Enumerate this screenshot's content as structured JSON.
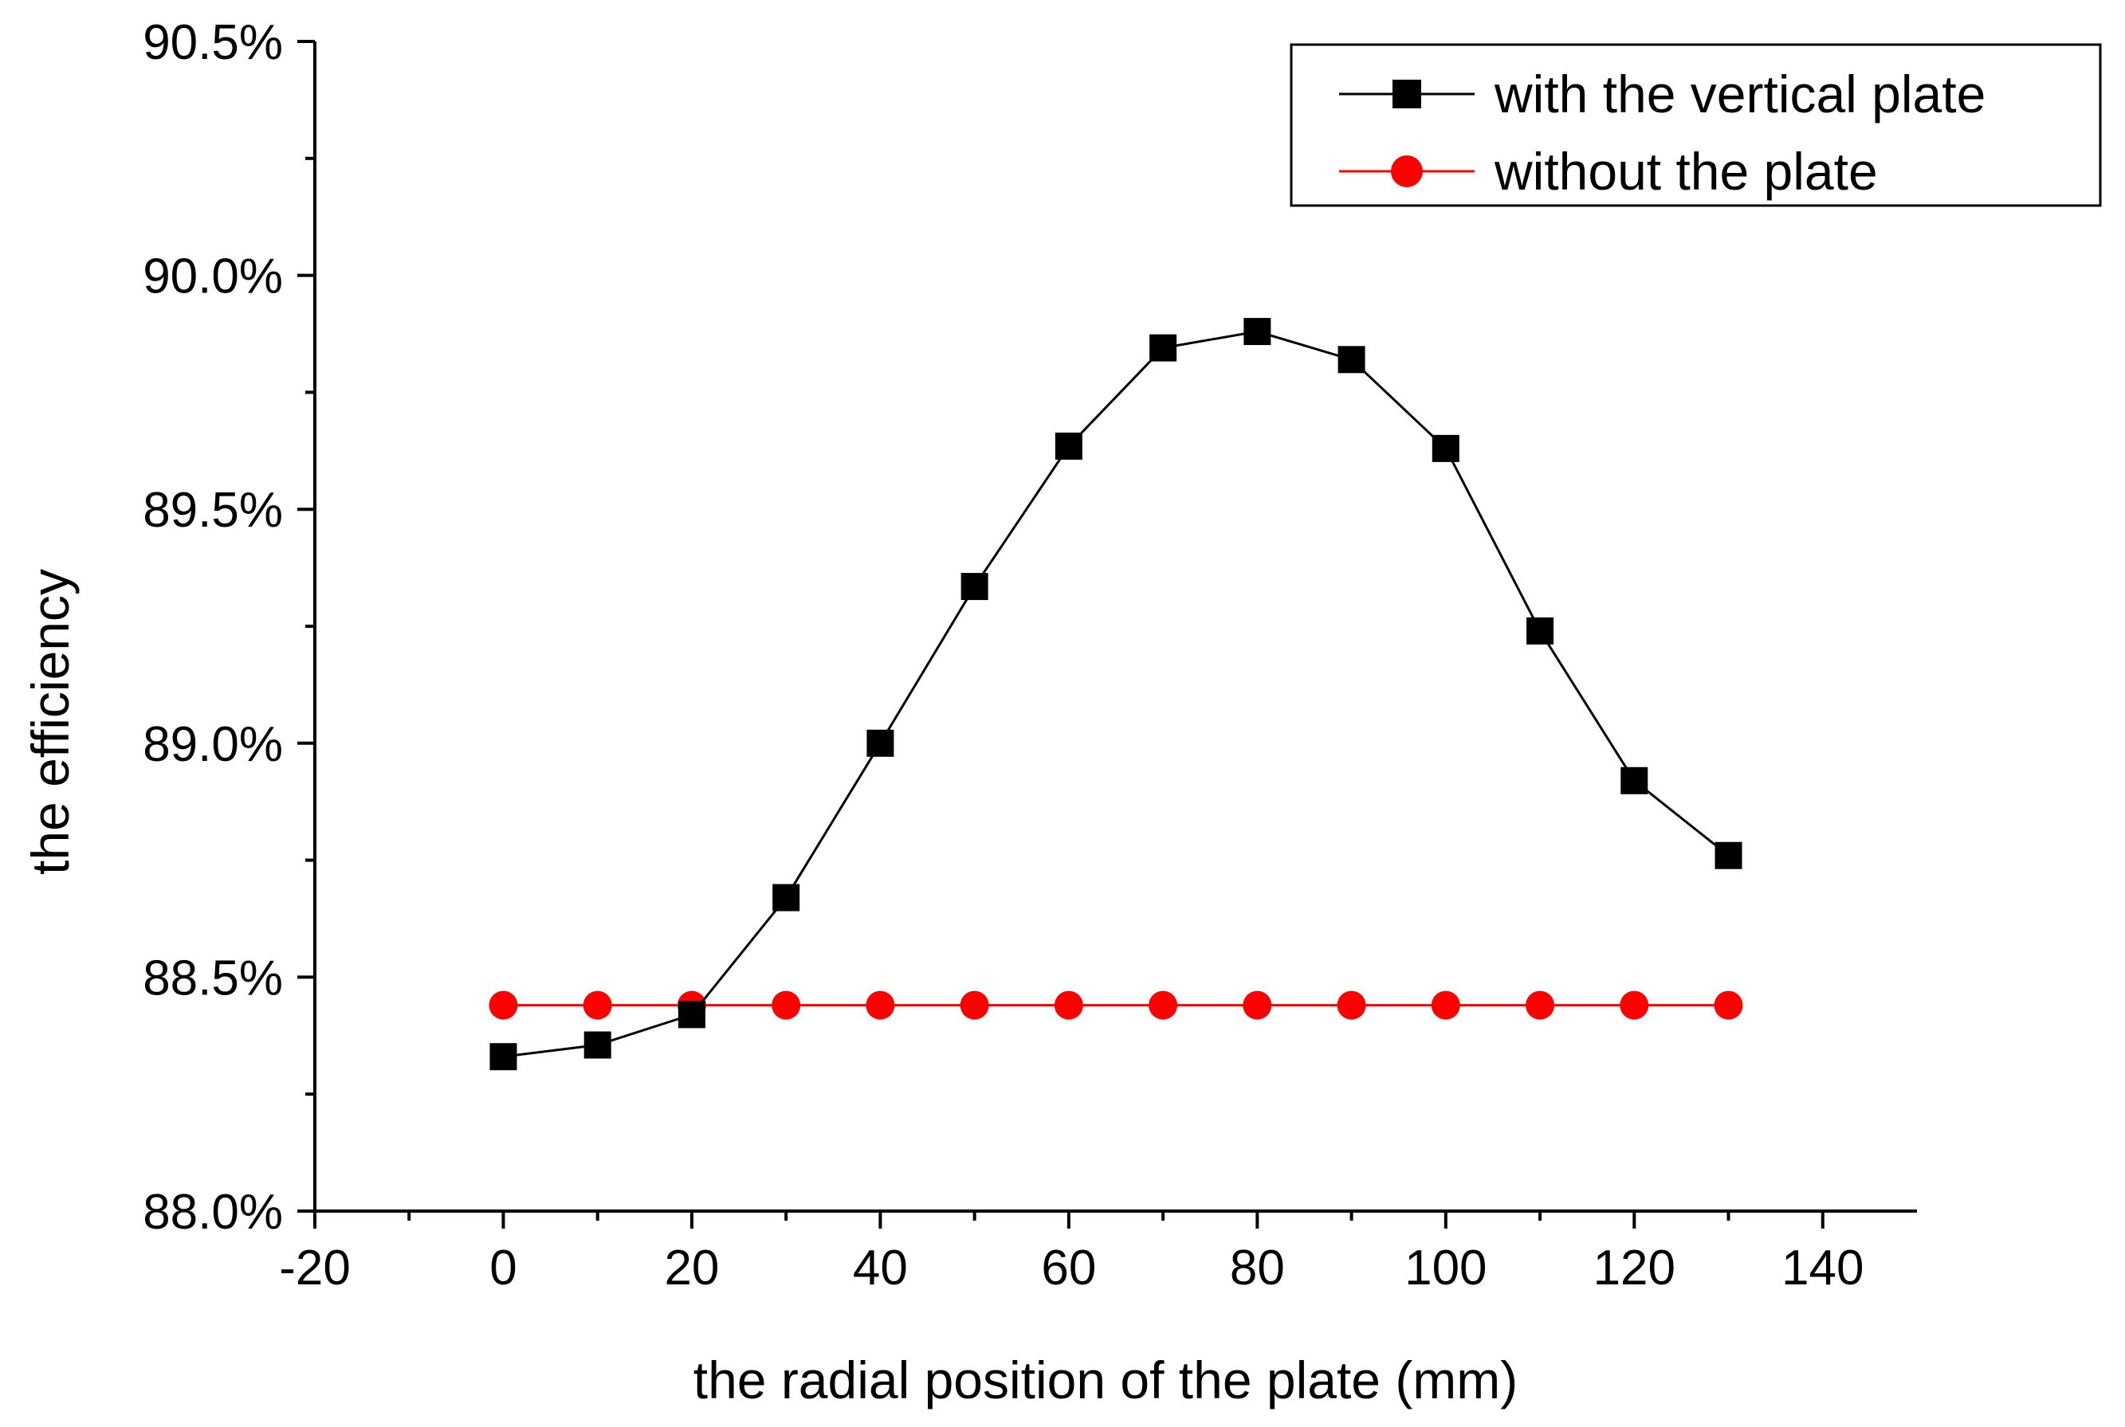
{
  "chart_data": {
    "type": "line",
    "title": "",
    "xlabel": "the radial position of the plate (mm)",
    "ylabel": "the efficiency",
    "xlim": [
      -20,
      150
    ],
    "ylim": [
      88.0,
      90.5
    ],
    "x_ticks": [
      -20,
      0,
      20,
      40,
      60,
      80,
      100,
      120,
      140
    ],
    "x_tick_labels": [
      "-20",
      "0",
      "20",
      "40",
      "60",
      "80",
      "100",
      "120",
      "140"
    ],
    "y_ticks": [
      88.0,
      88.5,
      89.0,
      89.5,
      90.0,
      90.5
    ],
    "y_tick_labels": [
      "88.0%",
      "88.5%",
      "89.0%",
      "89.5%",
      "90.0%",
      "90.5%"
    ],
    "grid": false,
    "legend_position": "top-right",
    "x": [
      0,
      10,
      20,
      30,
      40,
      50,
      60,
      70,
      80,
      90,
      100,
      110,
      120,
      130
    ],
    "series": [
      {
        "name": "with the vertical plate",
        "color": "#000000",
        "marker": "square",
        "values": [
          88.33,
          88.355,
          88.42,
          88.67,
          89.0,
          89.335,
          89.635,
          89.845,
          89.88,
          89.82,
          89.63,
          89.24,
          88.92,
          88.76
        ]
      },
      {
        "name": "without the plate",
        "color": "#ff0000",
        "marker": "circle",
        "values": [
          88.44,
          88.44,
          88.44,
          88.44,
          88.44,
          88.44,
          88.44,
          88.44,
          88.44,
          88.44,
          88.44,
          88.44,
          88.44,
          88.44
        ]
      }
    ]
  }
}
